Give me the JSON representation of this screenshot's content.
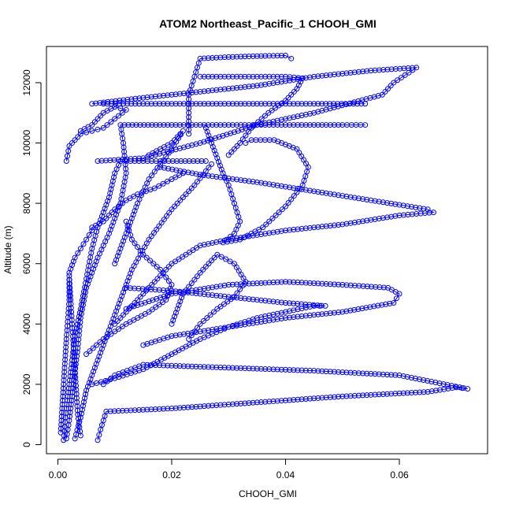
{
  "chart_data": {
    "type": "scatter",
    "title": "ATOM2 Northeast_Pacific_1 CHOOH_GMI",
    "xlabel": "CHOOH_GMI",
    "ylabel": "Altitude (m)",
    "xlim": [
      -0.002,
      0.0755
    ],
    "ylim": [
      -300,
      13200
    ],
    "xticks": [
      0,
      0.02,
      0.04,
      0.06
    ],
    "xtick_labels": [
      "0.00",
      "0.02",
      "0.04",
      "0.06"
    ],
    "yticks": [
      0,
      2000,
      4000,
      6000,
      8000,
      10000,
      12000
    ],
    "ytick_labels": [
      "0",
      "2000",
      "4000",
      "6000",
      "8000",
      "10000",
      "12000"
    ],
    "grid": false,
    "marker": "open-circle",
    "series_color": "#0000ff",
    "series": [
      {
        "points": [
          [
            0.001,
            150
          ],
          [
            0.0012,
            600
          ],
          [
            0.0015,
            1200
          ],
          [
            0.002,
            2000
          ],
          [
            0.0025,
            2800
          ],
          [
            0.003,
            3600
          ],
          [
            0.004,
            4500
          ],
          [
            0.005,
            5500
          ],
          [
            0.006,
            6500
          ],
          [
            0.007,
            7200
          ],
          [
            0.009,
            8200
          ],
          [
            0.01,
            9000
          ],
          [
            0.011,
            9400
          ],
          [
            0.012,
            9400
          ],
          [
            0.018,
            9400
          ],
          [
            0.026,
            9400
          ]
        ]
      },
      {
        "points": [
          [
            0.0015,
            200
          ],
          [
            0.002,
            800
          ],
          [
            0.0025,
            1600
          ],
          [
            0.003,
            2400
          ],
          [
            0.0035,
            3200
          ],
          [
            0.004,
            4200
          ],
          [
            0.005,
            5200
          ],
          [
            0.007,
            6200
          ],
          [
            0.009,
            7000
          ],
          [
            0.011,
            8000
          ],
          [
            0.012,
            9000
          ],
          [
            0.0115,
            10000
          ],
          [
            0.011,
            10600
          ],
          [
            0.02,
            10600
          ],
          [
            0.035,
            10600
          ],
          [
            0.05,
            10600
          ],
          [
            0.054,
            10600
          ]
        ]
      },
      {
        "points": [
          [
            0.003,
            200
          ],
          [
            0.004,
            900
          ],
          [
            0.005,
            1800
          ],
          [
            0.007,
            2800
          ],
          [
            0.009,
            3800
          ],
          [
            0.011,
            4800
          ],
          [
            0.013,
            5800
          ],
          [
            0.016,
            6800
          ],
          [
            0.02,
            7800
          ],
          [
            0.024,
            8600
          ],
          [
            0.027,
            9300
          ]
        ]
      },
      {
        "points": [
          [
            0.007,
            150
          ],
          [
            0.0075,
            500
          ],
          [
            0.0085,
            1100
          ],
          [
            0.02,
            1200
          ],
          [
            0.035,
            1400
          ],
          [
            0.05,
            1600
          ],
          [
            0.065,
            1750
          ],
          [
            0.07,
            1900
          ],
          [
            0.072,
            1850
          ],
          [
            0.06,
            2300
          ],
          [
            0.045,
            2450
          ],
          [
            0.03,
            2550
          ],
          [
            0.015,
            2650
          ],
          [
            0.01,
            2300
          ],
          [
            0.008,
            2000
          ]
        ]
      },
      {
        "points": [
          [
            0.006,
            2000
          ],
          [
            0.01,
            2200
          ],
          [
            0.015,
            2500
          ],
          [
            0.02,
            3000
          ],
          [
            0.025,
            3500
          ],
          [
            0.03,
            3900
          ],
          [
            0.035,
            4200
          ],
          [
            0.04,
            4400
          ],
          [
            0.045,
            4600
          ],
          [
            0.047,
            4600
          ],
          [
            0.04,
            4700
          ],
          [
            0.03,
            4900
          ],
          [
            0.02,
            5100
          ],
          [
            0.012,
            5200
          ]
        ]
      },
      {
        "points": [
          [
            0.012,
            4500
          ],
          [
            0.02,
            5000
          ],
          [
            0.03,
            5300
          ],
          [
            0.04,
            5400
          ],
          [
            0.05,
            5300
          ],
          [
            0.058,
            5200
          ],
          [
            0.06,
            5000
          ],
          [
            0.059,
            4700
          ],
          [
            0.05,
            4400
          ],
          [
            0.04,
            4200
          ],
          [
            0.03,
            3900
          ],
          [
            0.02,
            3600
          ],
          [
            0.015,
            3300
          ]
        ]
      },
      {
        "points": [
          [
            0.01,
            4000
          ],
          [
            0.015,
            5000
          ],
          [
            0.02,
            6000
          ],
          [
            0.025,
            6600
          ],
          [
            0.03,
            6800
          ],
          [
            0.04,
            7100
          ],
          [
            0.05,
            7300
          ],
          [
            0.06,
            7600
          ],
          [
            0.066,
            7700
          ],
          [
            0.065,
            7800
          ],
          [
            0.055,
            8100
          ],
          [
            0.045,
            8400
          ],
          [
            0.035,
            8700
          ],
          [
            0.025,
            8950
          ],
          [
            0.018,
            9200
          ]
        ]
      },
      {
        "points": [
          [
            0.026,
            10500
          ],
          [
            0.027,
            10000
          ],
          [
            0.028,
            9500
          ],
          [
            0.029,
            9000
          ],
          [
            0.03,
            8600
          ],
          [
            0.031,
            8000
          ],
          [
            0.032,
            7400
          ],
          [
            0.031,
            7000
          ],
          [
            0.029,
            6700
          ],
          [
            0.032,
            6800
          ],
          [
            0.036,
            7200
          ],
          [
            0.04,
            7900
          ],
          [
            0.043,
            8600
          ],
          [
            0.044,
            9200
          ],
          [
            0.042,
            9800
          ],
          [
            0.038,
            10100
          ],
          [
            0.034,
            10100
          ],
          [
            0.033,
            10000
          ]
        ]
      },
      {
        "points": [
          [
            0.023,
            10300
          ],
          [
            0.023,
            11000
          ],
          [
            0.023,
            11600
          ],
          [
            0.024,
            12200
          ],
          [
            0.025,
            12800
          ],
          [
            0.03,
            12850
          ],
          [
            0.035,
            12880
          ],
          [
            0.04,
            12900
          ],
          [
            0.041,
            12800
          ]
        ]
      },
      {
        "points": [
          [
            0.025,
            12200
          ],
          [
            0.03,
            12200
          ],
          [
            0.035,
            12200
          ],
          [
            0.04,
            12200
          ],
          [
            0.043,
            12150
          ],
          [
            0.042,
            11800
          ],
          [
            0.04,
            11400
          ],
          [
            0.037,
            11000
          ],
          [
            0.034,
            10500
          ],
          [
            0.032,
            10000
          ],
          [
            0.03,
            9600
          ]
        ]
      },
      {
        "points": [
          [
            0.008,
            11300
          ],
          [
            0.015,
            11300
          ],
          [
            0.025,
            11300
          ],
          [
            0.035,
            11300
          ],
          [
            0.045,
            11300
          ],
          [
            0.054,
            11300
          ]
        ]
      },
      {
        "points": [
          [
            0.006,
            11300
          ],
          [
            0.015,
            11500
          ],
          [
            0.025,
            11700
          ],
          [
            0.035,
            11900
          ],
          [
            0.045,
            12200
          ],
          [
            0.055,
            12400
          ],
          [
            0.063,
            12500
          ],
          [
            0.059,
            12000
          ],
          [
            0.057,
            11600
          ],
          [
            0.045,
            11000
          ],
          [
            0.035,
            10600
          ],
          [
            0.025,
            10000
          ],
          [
            0.015,
            9500
          ],
          [
            0.007,
            9400
          ]
        ]
      },
      {
        "points": [
          [
            0.004,
            10400
          ],
          [
            0.006,
            10600
          ],
          [
            0.008,
            11000
          ],
          [
            0.01,
            11200
          ],
          [
            0.012,
            11100
          ],
          [
            0.01,
            10800
          ],
          [
            0.008,
            10500
          ],
          [
            0.006,
            10400
          ],
          [
            0.004,
            10300
          ],
          [
            0.002,
            9900
          ],
          [
            0.0015,
            9400
          ]
        ]
      },
      {
        "points": [
          [
            0.002,
            5700
          ],
          [
            0.003,
            6200
          ],
          [
            0.004,
            6500
          ],
          [
            0.005,
            6800
          ],
          [
            0.006,
            7100
          ],
          [
            0.006,
            7200
          ],
          [
            0.008,
            7400
          ],
          [
            0.01,
            7800
          ],
          [
            0.012,
            8100
          ],
          [
            0.014,
            8300
          ],
          [
            0.017,
            8500
          ],
          [
            0.02,
            8800
          ],
          [
            0.022,
            9000
          ]
        ]
      },
      {
        "points": [
          [
            0.01,
            6000
          ],
          [
            0.012,
            7000
          ],
          [
            0.014,
            8000
          ],
          [
            0.016,
            8800
          ],
          [
            0.018,
            9300
          ],
          [
            0.02,
            9800
          ],
          [
            0.022,
            10400
          ],
          [
            0.02,
            10000
          ],
          [
            0.016,
            9600
          ]
        ]
      },
      {
        "points": [
          [
            0.02,
            4000
          ],
          [
            0.022,
            5000
          ],
          [
            0.025,
            5700
          ],
          [
            0.028,
            6300
          ],
          [
            0.031,
            6000
          ],
          [
            0.033,
            5400
          ],
          [
            0.031,
            4900
          ],
          [
            0.028,
            4500
          ],
          [
            0.025,
            4000
          ],
          [
            0.023,
            3500
          ]
        ]
      },
      {
        "points": [
          [
            0.005,
            3000
          ],
          [
            0.008,
            3500
          ],
          [
            0.012,
            4000
          ],
          [
            0.016,
            4400
          ],
          [
            0.019,
            4800
          ],
          [
            0.02,
            5300
          ],
          [
            0.018,
            5800
          ],
          [
            0.015,
            6300
          ],
          [
            0.013,
            6800
          ],
          [
            0.012,
            7400
          ]
        ]
      },
      {
        "points": [
          [
            0.0005,
            400
          ],
          [
            0.001,
            2000
          ],
          [
            0.0015,
            3500
          ],
          [
            0.002,
            4800
          ],
          [
            0.002,
            5600
          ],
          [
            0.0025,
            4000
          ],
          [
            0.003,
            2500
          ],
          [
            0.0035,
            1000
          ],
          [
            0.004,
            300
          ]
        ]
      }
    ]
  }
}
